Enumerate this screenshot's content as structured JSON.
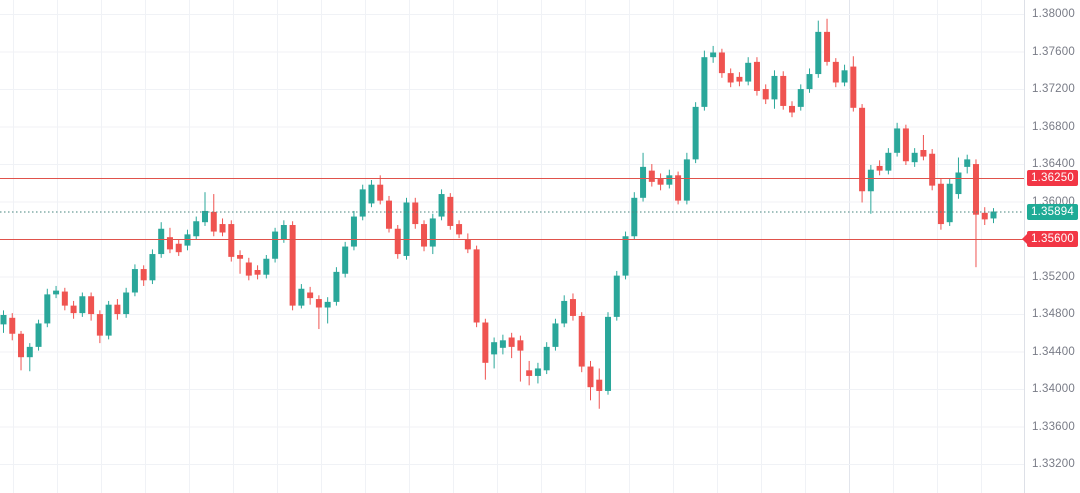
{
  "chart": {
    "background": "#ffffff",
    "grid_color": "#f0f2f6",
    "session_line_color": "#e2e5ec",
    "session_line_x": 849,
    "axis": {
      "text_color": "#787b86",
      "border_color": "#dde0e7",
      "tick_labels": [
        "1.38000",
        "1.37600",
        "1.37200",
        "1.36800",
        "1.36400",
        "1.36000",
        "1.35600",
        "1.35200",
        "1.34800",
        "1.34400",
        "1.34000",
        "1.33600",
        "1.33200"
      ],
      "tick_values": [
        1.38,
        1.376,
        1.372,
        1.368,
        1.364,
        1.36,
        1.356,
        1.352,
        1.348,
        1.344,
        1.34,
        1.336,
        1.332
      ]
    },
    "price_lines": [
      {
        "name": "resistance",
        "value": 1.3625,
        "label": "1.36250",
        "line_color": "#e0524b",
        "badge_color": "#f23645",
        "style": "solid",
        "arrow": false
      },
      {
        "name": "current-price",
        "value": 1.35894,
        "label": "1.35894",
        "line_color": "#45837c",
        "badge_color": "#1fab96",
        "style": "dotted",
        "arrow": false
      },
      {
        "name": "support",
        "value": 1.356,
        "label": "1.35600",
        "line_color": "#e0524b",
        "badge_color": "#f23645",
        "style": "solid",
        "arrow": true
      }
    ]
  },
  "chart_data": {
    "type": "candlestick",
    "title": "",
    "xlabel": "",
    "ylabel": "",
    "grid": "faint",
    "legend": "none",
    "up_color": "#2aa79a",
    "down_color": "#ef5350",
    "ylim": [
      1.3289,
      1.3815
    ],
    "price_levels": {
      "resistance": 1.3625,
      "current": 1.35894,
      "support": 1.356
    },
    "candles_format": [
      "open",
      "high",
      "low",
      "close"
    ],
    "candles": [
      [
        1.3469,
        1.3484,
        1.346,
        1.3479
      ],
      [
        1.3476,
        1.3481,
        1.3452,
        1.3459
      ],
      [
        1.3459,
        1.3462,
        1.342,
        1.3434
      ],
      [
        1.3434,
        1.3449,
        1.3419,
        1.3445
      ],
      [
        1.3445,
        1.3474,
        1.3441,
        1.347
      ],
      [
        1.347,
        1.3507,
        1.3466,
        1.3501
      ],
      [
        1.3501,
        1.351,
        1.3497,
        1.3505
      ],
      [
        1.3504,
        1.3508,
        1.3484,
        1.3489
      ],
      [
        1.3489,
        1.3494,
        1.3475,
        1.3481
      ],
      [
        1.3481,
        1.3503,
        1.3477,
        1.3499
      ],
      [
        1.3499,
        1.3503,
        1.3473,
        1.348
      ],
      [
        1.348,
        1.3484,
        1.3449,
        1.3457
      ],
      [
        1.3457,
        1.3494,
        1.3453,
        1.349
      ],
      [
        1.349,
        1.3496,
        1.3474,
        1.348
      ],
      [
        1.348,
        1.3508,
        1.3476,
        1.3503
      ],
      [
        1.3503,
        1.3533,
        1.3499,
        1.3528
      ],
      [
        1.3528,
        1.3532,
        1.351,
        1.3516
      ],
      [
        1.3516,
        1.3549,
        1.3512,
        1.3544
      ],
      [
        1.3544,
        1.3578,
        1.354,
        1.3571
      ],
      [
        1.3562,
        1.3572,
        1.3545,
        1.3549
      ],
      [
        1.3555,
        1.356,
        1.3542,
        1.3546
      ],
      [
        1.3553,
        1.357,
        1.3548,
        1.3565
      ],
      [
        1.3563,
        1.3584,
        1.3559,
        1.3579
      ],
      [
        1.3578,
        1.361,
        1.3574,
        1.359
      ],
      [
        1.3589,
        1.3608,
        1.3563,
        1.3568
      ],
      [
        1.3576,
        1.3582,
        1.3563,
        1.3567
      ],
      [
        1.3576,
        1.358,
        1.3536,
        1.3541
      ],
      [
        1.3543,
        1.3548,
        1.3523,
        1.3539
      ],
      [
        1.3535,
        1.354,
        1.3516,
        1.3521
      ],
      [
        1.3527,
        1.3532,
        1.3517,
        1.3522
      ],
      [
        1.3522,
        1.3543,
        1.3518,
        1.3539
      ],
      [
        1.3539,
        1.3572,
        1.3535,
        1.3568
      ],
      [
        1.356,
        1.358,
        1.3556,
        1.3575
      ],
      [
        1.3575,
        1.3579,
        1.3484,
        1.3489
      ],
      [
        1.3489,
        1.3512,
        1.3486,
        1.3507
      ],
      [
        1.3503,
        1.3509,
        1.349,
        1.3497
      ],
      [
        1.3496,
        1.35,
        1.3464,
        1.3487
      ],
      [
        1.3487,
        1.3498,
        1.347,
        1.3493
      ],
      [
        1.3493,
        1.353,
        1.3489,
        1.3525
      ],
      [
        1.3523,
        1.3557,
        1.3519,
        1.3552
      ],
      [
        1.3552,
        1.359,
        1.3548,
        1.3584
      ],
      [
        1.3584,
        1.3618,
        1.358,
        1.3613
      ],
      [
        1.3598,
        1.3623,
        1.3594,
        1.3618
      ],
      [
        1.3618,
        1.3628,
        1.3597,
        1.3601
      ],
      [
        1.3601,
        1.3606,
        1.3567,
        1.3571
      ],
      [
        1.3571,
        1.3575,
        1.3539,
        1.3544
      ],
      [
        1.3542,
        1.3604,
        1.3538,
        1.3599
      ],
      [
        1.3599,
        1.3604,
        1.3571,
        1.3576
      ],
      [
        1.3576,
        1.358,
        1.3547,
        1.3552
      ],
      [
        1.3552,
        1.3587,
        1.3544,
        1.3582
      ],
      [
        1.3584,
        1.3613,
        1.358,
        1.3608
      ],
      [
        1.3605,
        1.3609,
        1.357,
        1.3574
      ],
      [
        1.3576,
        1.358,
        1.3561,
        1.3565
      ],
      [
        1.356,
        1.3566,
        1.3545,
        1.3549
      ],
      [
        1.3549,
        1.3553,
        1.3466,
        1.3471
      ],
      [
        1.3471,
        1.3475,
        1.341,
        1.3428
      ],
      [
        1.3437,
        1.3455,
        1.3422,
        1.345
      ],
      [
        1.3444,
        1.3458,
        1.3437,
        1.3452
      ],
      [
        1.3455,
        1.346,
        1.3433,
        1.3445
      ],
      [
        1.3452,
        1.3457,
        1.3408,
        1.3441
      ],
      [
        1.342,
        1.343,
        1.3404,
        1.3414
      ],
      [
        1.3414,
        1.3428,
        1.3406,
        1.3422
      ],
      [
        1.342,
        1.345,
        1.3416,
        1.3445
      ],
      [
        1.3445,
        1.3475,
        1.3441,
        1.347
      ],
      [
        1.347,
        1.35,
        1.3466,
        1.3494
      ],
      [
        1.3496,
        1.3502,
        1.3473,
        1.3478
      ],
      [
        1.3478,
        1.3482,
        1.3418,
        1.3424
      ],
      [
        1.3424,
        1.343,
        1.3388,
        1.3402
      ],
      [
        1.341,
        1.3422,
        1.3379,
        1.3398
      ],
      [
        1.3398,
        1.3482,
        1.3394,
        1.3477
      ],
      [
        1.3477,
        1.3526,
        1.3473,
        1.3521
      ],
      [
        1.3521,
        1.3568,
        1.3517,
        1.3563
      ],
      [
        1.3563,
        1.361,
        1.3559,
        1.3604
      ],
      [
        1.3604,
        1.3652,
        1.36,
        1.3637
      ],
      [
        1.3633,
        1.364,
        1.3616,
        1.3621
      ],
      [
        1.3624,
        1.363,
        1.3612,
        1.3618
      ],
      [
        1.3618,
        1.3634,
        1.3614,
        1.3628
      ],
      [
        1.3628,
        1.3632,
        1.3597,
        1.3601
      ],
      [
        1.3601,
        1.3652,
        1.3597,
        1.3645
      ],
      [
        1.3645,
        1.3706,
        1.3641,
        1.3701
      ],
      [
        1.3701,
        1.3761,
        1.3697,
        1.3754
      ],
      [
        1.3754,
        1.3766,
        1.3748,
        1.3759
      ],
      [
        1.3759,
        1.3763,
        1.3732,
        1.3737
      ],
      [
        1.3737,
        1.3742,
        1.3722,
        1.3727
      ],
      [
        1.3733,
        1.3738,
        1.3723,
        1.3728
      ],
      [
        1.3728,
        1.3754,
        1.3724,
        1.3748
      ],
      [
        1.3749,
        1.3754,
        1.3713,
        1.3718
      ],
      [
        1.372,
        1.3725,
        1.3704,
        1.3709
      ],
      [
        1.3709,
        1.374,
        1.3699,
        1.3734
      ],
      [
        1.3734,
        1.3739,
        1.3698,
        1.3702
      ],
      [
        1.3702,
        1.3707,
        1.369,
        1.3695
      ],
      [
        1.3701,
        1.3725,
        1.3697,
        1.372
      ],
      [
        1.372,
        1.3742,
        1.3716,
        1.3736
      ],
      [
        1.3736,
        1.3793,
        1.3732,
        1.3781
      ],
      [
        1.3781,
        1.3795,
        1.3745,
        1.3749
      ],
      [
        1.3749,
        1.3753,
        1.3722,
        1.3727
      ],
      [
        1.3727,
        1.3746,
        1.3723,
        1.374
      ],
      [
        1.3744,
        1.3755,
        1.3696,
        1.37
      ],
      [
        1.37,
        1.3704,
        1.3599,
        1.3611
      ],
      [
        1.3611,
        1.3639,
        1.3587,
        1.3634
      ],
      [
        1.3638,
        1.3644,
        1.3628,
        1.3633
      ],
      [
        1.3633,
        1.3657,
        1.3629,
        1.3652
      ],
      [
        1.3652,
        1.3684,
        1.3648,
        1.3678
      ],
      [
        1.3678,
        1.3682,
        1.3639,
        1.3643
      ],
      [
        1.3642,
        1.3657,
        1.3637,
        1.3652
      ],
      [
        1.3655,
        1.3671,
        1.3644,
        1.3648
      ],
      [
        1.3651,
        1.3656,
        1.3612,
        1.3617
      ],
      [
        1.3619,
        1.3624,
        1.357,
        1.3576
      ],
      [
        1.3578,
        1.3624,
        1.3574,
        1.3619
      ],
      [
        1.3608,
        1.3647,
        1.3603,
        1.3631
      ],
      [
        1.3637,
        1.365,
        1.363,
        1.3645
      ],
      [
        1.364,
        1.3645,
        1.353,
        1.3586
      ],
      [
        1.3588,
        1.3594,
        1.3575,
        1.3581
      ],
      [
        1.3582,
        1.3593,
        1.3577,
        1.35894
      ]
    ]
  }
}
